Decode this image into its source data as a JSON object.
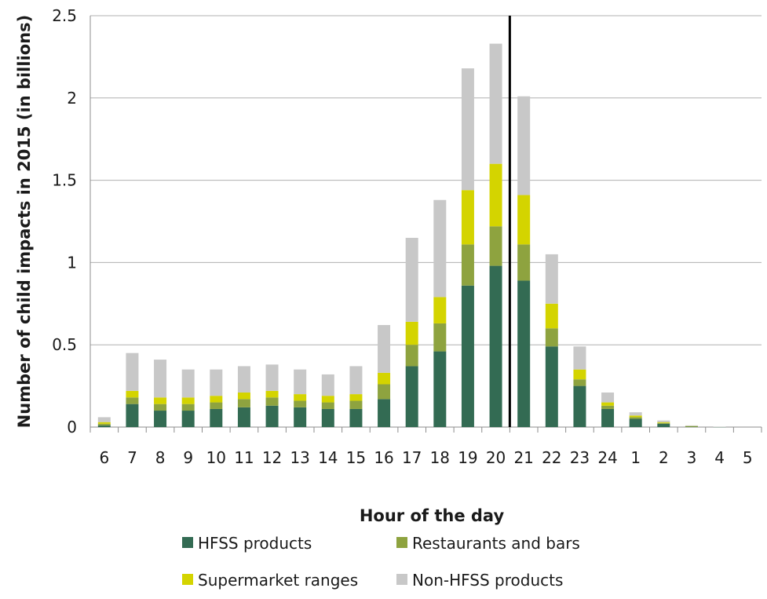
{
  "chart_data": {
    "type": "bar",
    "stacked": true,
    "xlabel": "Hour of the day",
    "ylabel": "Number of child impacts in 2015 (in billions)",
    "ylim": [
      0,
      2.5
    ],
    "y_ticks": [
      "0",
      "0.5",
      "1",
      "1.5",
      "2",
      "2.5"
    ],
    "grid": "horizontal",
    "legend_position": "bottom",
    "reference_line_after_category": "20",
    "categories": [
      "6",
      "7",
      "8",
      "9",
      "10",
      "11",
      "12",
      "13",
      "14",
      "15",
      "16",
      "17",
      "18",
      "19",
      "20",
      "21",
      "22",
      "23",
      "24",
      "1",
      "2",
      "3",
      "4",
      "5"
    ],
    "series": [
      {
        "name": "HFSS products",
        "color": "#336b53",
        "values": [
          0.01,
          0.14,
          0.1,
          0.1,
          0.11,
          0.12,
          0.13,
          0.12,
          0.11,
          0.11,
          0.17,
          0.37,
          0.46,
          0.86,
          0.98,
          0.89,
          0.49,
          0.25,
          0.11,
          0.05,
          0.02,
          0.004,
          0.001,
          0.0
        ]
      },
      {
        "name": "Restaurants and bars",
        "color": "#8ea33f",
        "values": [
          0.01,
          0.04,
          0.04,
          0.04,
          0.04,
          0.05,
          0.05,
          0.04,
          0.04,
          0.05,
          0.09,
          0.13,
          0.17,
          0.25,
          0.24,
          0.22,
          0.11,
          0.04,
          0.02,
          0.01,
          0.005,
          0.001,
          0.0,
          0.0
        ]
      },
      {
        "name": "Supermarket ranges",
        "color": "#d4d400",
        "values": [
          0.01,
          0.04,
          0.04,
          0.04,
          0.04,
          0.04,
          0.04,
          0.04,
          0.04,
          0.04,
          0.07,
          0.14,
          0.16,
          0.33,
          0.38,
          0.3,
          0.15,
          0.06,
          0.02,
          0.01,
          0.005,
          0.001,
          0.0,
          0.0
        ]
      },
      {
        "name": "Non-HFSS products",
        "color": "#c8c8c8",
        "values": [
          0.03,
          0.23,
          0.23,
          0.17,
          0.16,
          0.16,
          0.16,
          0.15,
          0.13,
          0.17,
          0.29,
          0.51,
          0.59,
          0.74,
          0.73,
          0.6,
          0.3,
          0.14,
          0.06,
          0.02,
          0.01,
          0.004,
          0.001,
          0.0
        ]
      }
    ]
  }
}
